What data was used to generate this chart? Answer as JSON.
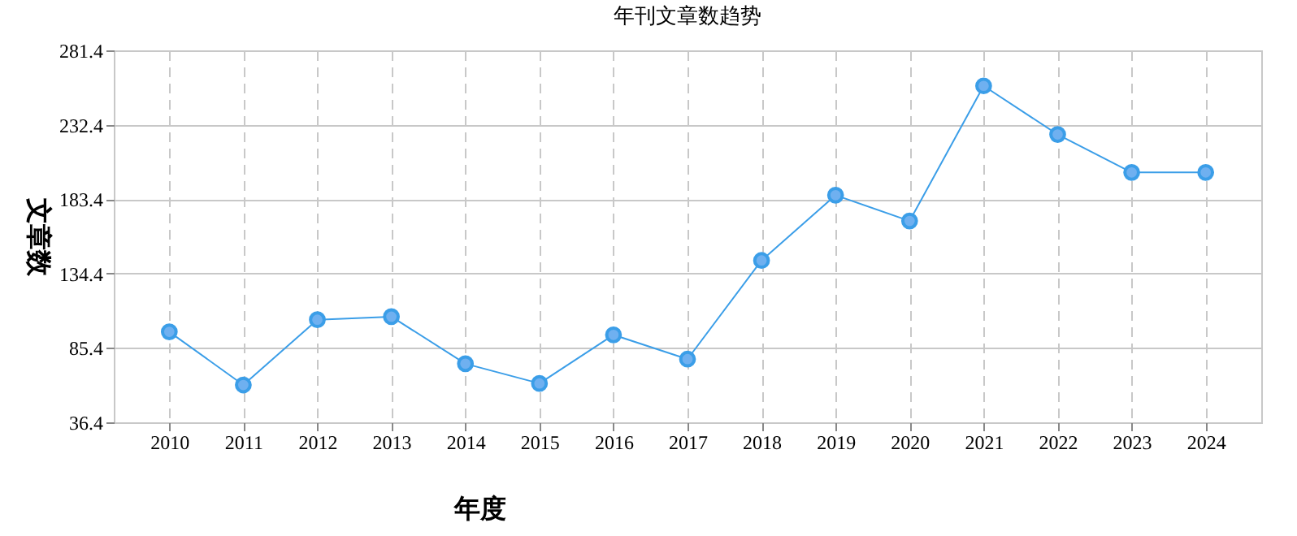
{
  "chart_data": {
    "type": "line",
    "title": "年刊文章数趋势",
    "xlabel": "年度",
    "ylabel": "文章数",
    "categories": [
      "2010",
      "2011",
      "2012",
      "2013",
      "2014",
      "2015",
      "2016",
      "2017",
      "2018",
      "2019",
      "2020",
      "2021",
      "2022",
      "2023",
      "2024"
    ],
    "series": [
      {
        "color": "#3b9ee8",
        "values": [
          96,
          61,
          104,
          106,
          75,
          62,
          94,
          78,
          143,
          186,
          169,
          258,
          226,
          201,
          201
        ]
      }
    ],
    "ylim": [
      36.4,
      281.4
    ],
    "yticks": [
      36.4,
      85.4,
      134.4,
      183.4,
      232.4,
      281.4
    ],
    "grid": true,
    "marker": "circle",
    "line_style": "solid",
    "legend": false
  }
}
